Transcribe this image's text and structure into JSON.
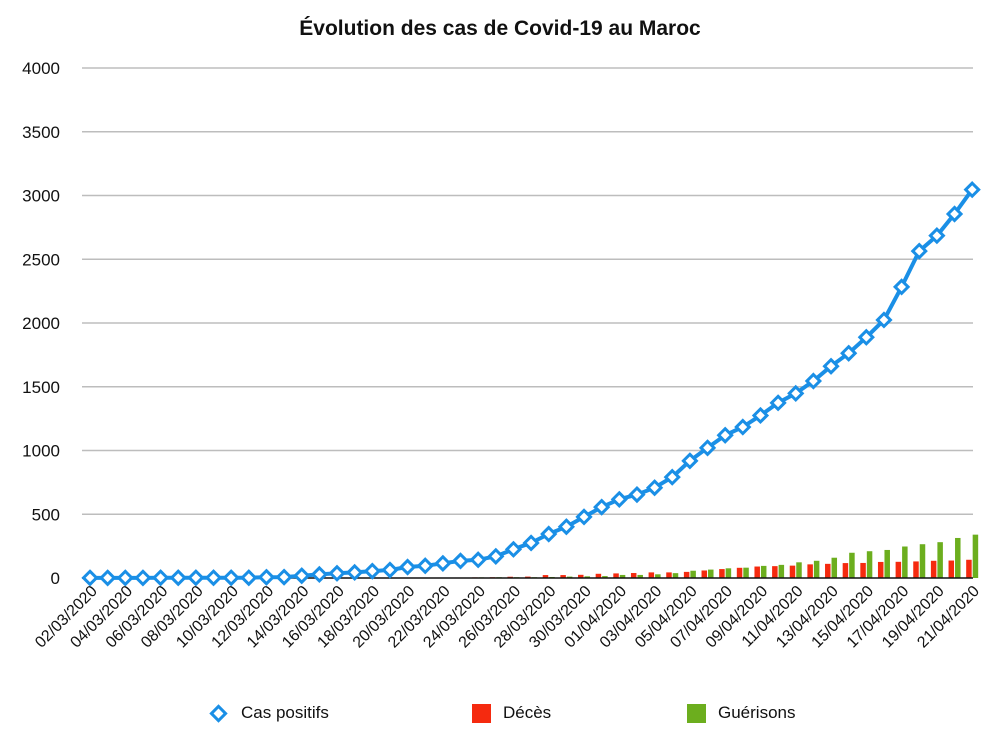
{
  "chart_data": {
    "type": "bar",
    "title": "Évolution des cas de Covid-19 au Maroc",
    "xlabel": "",
    "ylabel": "",
    "ylim": [
      0,
      4000
    ],
    "yticks": [
      0,
      500,
      1000,
      1500,
      2000,
      2500,
      3000,
      3500,
      4000
    ],
    "grid": true,
    "legend_position": "bottom",
    "categories": [
      "02/03/2020",
      "03/03/2020",
      "04/03/2020",
      "05/03/2020",
      "06/03/2020",
      "07/03/2020",
      "08/03/2020",
      "09/03/2020",
      "10/03/2020",
      "11/03/2020",
      "12/03/2020",
      "13/03/2020",
      "14/03/2020",
      "15/03/2020",
      "16/03/2020",
      "17/03/2020",
      "18/03/2020",
      "19/03/2020",
      "20/03/2020",
      "21/03/2020",
      "22/03/2020",
      "23/03/2020",
      "24/03/2020",
      "25/03/2020",
      "26/03/2020",
      "27/03/2020",
      "28/03/2020",
      "29/03/2020",
      "30/03/2020",
      "31/03/2020",
      "01/04/2020",
      "02/04/2020",
      "03/04/2020",
      "04/04/2020",
      "05/04/2020",
      "06/04/2020",
      "07/04/2020",
      "08/04/2020",
      "09/04/2020",
      "10/04/2020",
      "11/04/2020",
      "12/04/2020",
      "13/04/2020",
      "14/04/2020",
      "15/04/2020",
      "16/04/2020",
      "17/04/2020",
      "18/04/2020",
      "19/04/2020",
      "20/04/2020",
      "21/04/2020"
    ],
    "visible_tick_labels": [
      "02/03/2020",
      "04/03/2020",
      "06/03/2020",
      "08/03/2020",
      "10/03/2020",
      "12/03/2020",
      "14/03/2020",
      "16/03/2020",
      "18/03/2020",
      "20/03/2020",
      "22/03/2020",
      "24/03/2020",
      "26/03/2020",
      "28/03/2020",
      "30/03/2020",
      "01/04/2020",
      "03/04/2020",
      "05/04/2020",
      "07/04/2020",
      "09/04/2020",
      "11/04/2020",
      "13/04/2020",
      "15/04/2020",
      "17/04/2020",
      "19/04/2020",
      "21/04/2020"
    ],
    "series": [
      {
        "name": "Cas positifs",
        "type": "line",
        "color": "#1a8fe6",
        "marker": "diamond",
        "values": [
          1,
          1,
          1,
          1,
          2,
          2,
          2,
          2,
          2,
          2,
          6,
          7,
          18,
          28,
          37,
          44,
          54,
          63,
          86,
          96,
          115,
          134,
          143,
          170,
          225,
          275,
          345,
          402,
          479,
          556,
          617,
          654,
          708,
          791,
          919,
          1021,
          1120,
          1184,
          1275,
          1374,
          1448,
          1545,
          1661,
          1763,
          1888,
          2024,
          2283,
          2564,
          2685,
          2855,
          3046
        ]
      },
      {
        "name": "Décès",
        "type": "bar",
        "color": "#f52a0f",
        "values": [
          0,
          0,
          0,
          0,
          0,
          0,
          0,
          0,
          0,
          0,
          1,
          1,
          1,
          1,
          1,
          1,
          2,
          2,
          3,
          3,
          4,
          4,
          5,
          6,
          10,
          11,
          23,
          23,
          25,
          33,
          36,
          39,
          44,
          44,
          48,
          59,
          70,
          80,
          90,
          93,
          97,
          107,
          111,
          117,
          118,
          126,
          127,
          130,
          135,
          137,
          143
        ]
      },
      {
        "name": "Guérisons",
        "type": "bar",
        "color": "#6cae1e",
        "values": [
          0,
          0,
          0,
          0,
          0,
          0,
          0,
          0,
          0,
          0,
          0,
          0,
          1,
          1,
          1,
          1,
          1,
          2,
          2,
          3,
          3,
          4,
          5,
          6,
          6,
          6,
          8,
          11,
          13,
          15,
          24,
          24,
          29,
          38,
          57,
          66,
          76,
          81,
          95,
          103,
          123,
          135,
          159,
          198,
          210,
          220,
          247,
          265,
          281,
          314,
          340
        ]
      }
    ]
  },
  "legend": {
    "line_label": "Cas positifs",
    "deaths_label": "Décès",
    "recoveries_label": "Guérisons"
  }
}
